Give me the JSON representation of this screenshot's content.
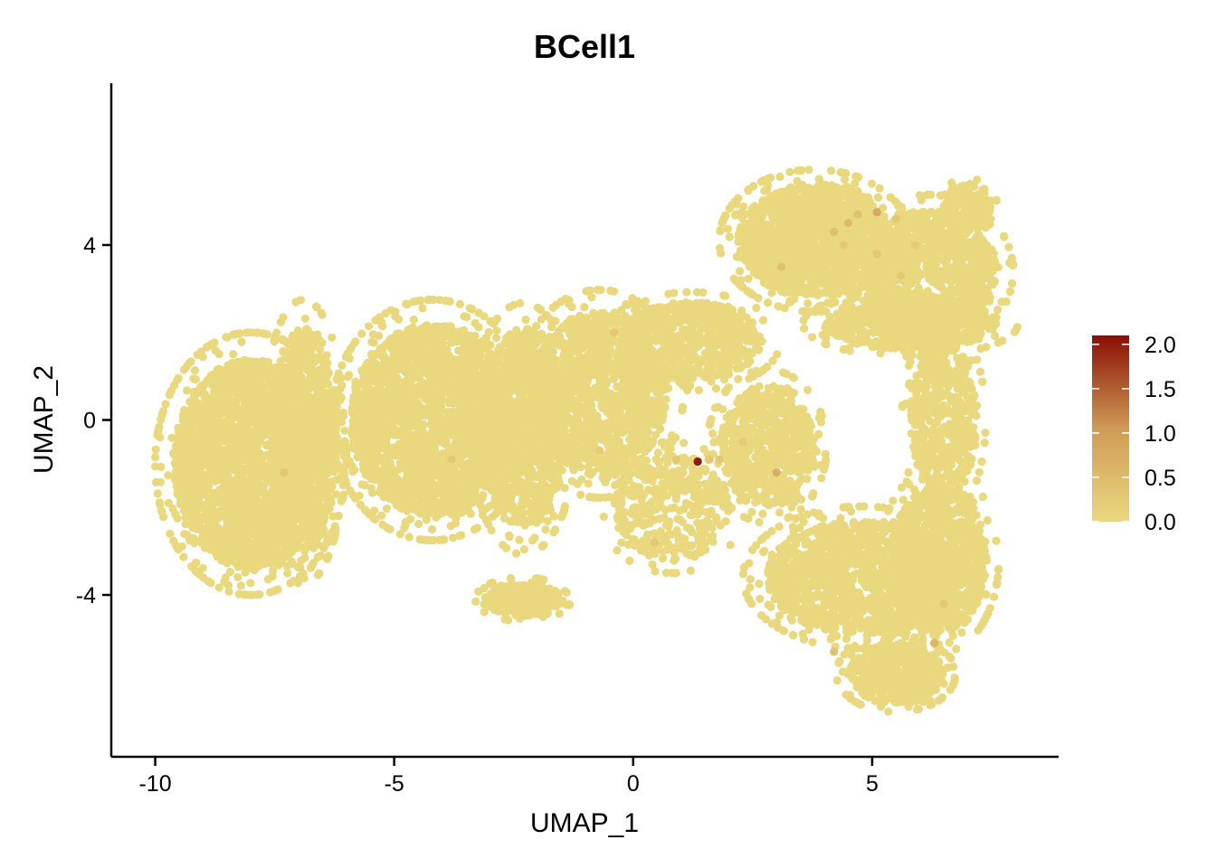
{
  "chart_data": {
    "type": "scatter",
    "title": "BCell1",
    "xlabel": "UMAP_1",
    "ylabel": "UMAP_2",
    "xlim": [
      -10.9,
      8.9
    ],
    "ylim": [
      -7.7,
      7.7
    ],
    "x_ticks": [
      -10,
      -5,
      0,
      5
    ],
    "y_ticks": [
      -4,
      0,
      4
    ],
    "x_tick_labels": [
      "-10",
      "-5",
      "0",
      "5"
    ],
    "y_tick_labels": [
      "-4",
      "0",
      "4"
    ],
    "grid": false,
    "legend": {
      "position": "right",
      "type": "colorbar",
      "min": 0.0,
      "max": 2.1,
      "ticks": [
        0.0,
        0.5,
        1.0,
        1.5,
        2.0
      ],
      "tick_labels": [
        "0.0",
        "0.5",
        "1.0",
        "1.5",
        "2.0"
      ],
      "color_low": "#EBD87F",
      "color_high": "#8B0E04"
    },
    "point_color_base": "#EAD87E",
    "cluster_regions": [
      {
        "cx": -8.0,
        "cy": -1.0,
        "rx": 1.6,
        "ry": 2.4,
        "n": 2600
      },
      {
        "cx": -6.9,
        "cy": -0.5,
        "rx": 0.7,
        "ry": 2.6,
        "n": 900
      },
      {
        "cx": -4.2,
        "cy": 0.0,
        "rx": 1.7,
        "ry": 2.2,
        "n": 2300
      },
      {
        "cx": -2.3,
        "cy": -0.2,
        "rx": 0.9,
        "ry": 2.3,
        "n": 1000
      },
      {
        "cx": -0.7,
        "cy": 0.6,
        "rx": 1.4,
        "ry": 1.9,
        "n": 1400
      },
      {
        "cx": 1.2,
        "cy": 1.8,
        "rx": 1.5,
        "ry": 0.9,
        "n": 700
      },
      {
        "cx": 3.8,
        "cy": 4.1,
        "rx": 1.6,
        "ry": 1.3,
        "n": 1600
      },
      {
        "cx": 6.2,
        "cy": 3.4,
        "rx": 1.4,
        "ry": 1.4,
        "n": 1100
      },
      {
        "cx": 5.8,
        "cy": 2.2,
        "rx": 1.8,
        "ry": 0.6,
        "n": 600
      },
      {
        "cx": 7.0,
        "cy": 4.9,
        "rx": 0.5,
        "ry": 0.5,
        "n": 150
      },
      {
        "cx": 2.8,
        "cy": -0.6,
        "rx": 1.0,
        "ry": 1.4,
        "n": 700
      },
      {
        "cx": 4.8,
        "cy": -3.6,
        "rx": 2.0,
        "ry": 1.3,
        "n": 1500
      },
      {
        "cx": 6.4,
        "cy": -3.2,
        "rx": 1.0,
        "ry": 1.7,
        "n": 900
      },
      {
        "cx": 5.5,
        "cy": -5.8,
        "rx": 1.0,
        "ry": 0.7,
        "n": 500
      },
      {
        "cx": -2.3,
        "cy": -4.1,
        "rx": 0.8,
        "ry": 0.4,
        "n": 250
      },
      {
        "cx": 6.5,
        "cy": 0.0,
        "rx": 0.7,
        "ry": 1.8,
        "n": 500
      },
      {
        "cx": 0.8,
        "cy": -2.0,
        "rx": 1.2,
        "ry": 1.2,
        "n": 400
      }
    ],
    "highlighted_points": [
      {
        "x": 1.35,
        "y": -0.95,
        "value": 2.0
      },
      {
        "x": 3.0,
        "y": -1.2,
        "value": 0.7
      },
      {
        "x": 5.1,
        "y": 4.75,
        "value": 0.8
      },
      {
        "x": 4.5,
        "y": 4.5,
        "value": 0.5
      },
      {
        "x": 4.2,
        "y": 4.3,
        "value": 0.4
      },
      {
        "x": 3.1,
        "y": 3.5,
        "value": 0.4
      },
      {
        "x": 4.7,
        "y": 4.7,
        "value": 0.4
      },
      {
        "x": 5.5,
        "y": 4.6,
        "value": 0.3
      },
      {
        "x": 6.3,
        "y": -5.1,
        "value": 0.6
      },
      {
        "x": 4.2,
        "y": -5.3,
        "value": 0.4
      },
      {
        "x": 1.8,
        "y": -0.9,
        "value": 0.3
      },
      {
        "x": 0.9,
        "y": -0.9,
        "value": 0.3
      },
      {
        "x": 1.6,
        "y": -0.9,
        "value": 0.25
      },
      {
        "x": -0.4,
        "y": 2.0,
        "value": 0.25
      },
      {
        "x": -7.3,
        "y": -1.2,
        "value": 0.3
      },
      {
        "x": -3.8,
        "y": -0.9,
        "value": 0.25
      },
      {
        "x": 5.1,
        "y": 3.8,
        "value": 0.3
      },
      {
        "x": 5.6,
        "y": 3.3,
        "value": 0.3
      },
      {
        "x": 4.4,
        "y": 4.0,
        "value": 0.25
      },
      {
        "x": 0.45,
        "y": -2.8,
        "value": 0.25
      },
      {
        "x": -0.7,
        "y": -0.7,
        "value": 0.2
      },
      {
        "x": 2.3,
        "y": -0.5,
        "value": 0.2
      },
      {
        "x": 6.5,
        "y": -4.2,
        "value": 0.3
      },
      {
        "x": 5.9,
        "y": 4.0,
        "value": 0.2
      }
    ]
  }
}
